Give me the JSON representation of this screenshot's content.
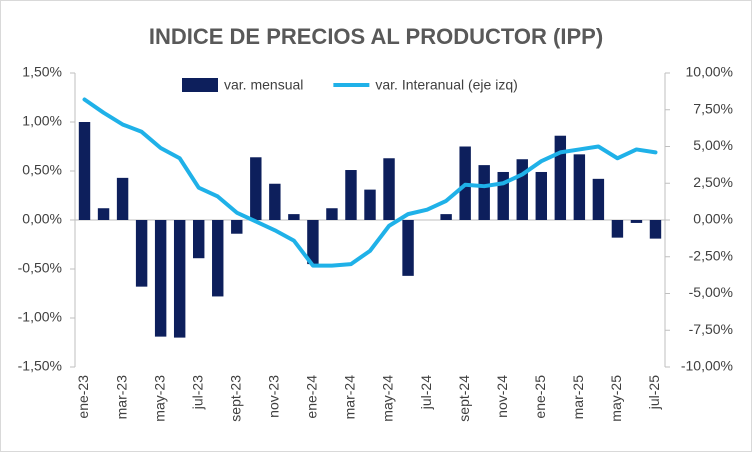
{
  "chart_data": {
    "type": "bar_line",
    "title": "INDICE DE PRECIOS AL PRODUCTOR (IPP)",
    "categories": [
      "ene-23",
      null,
      "mar-23",
      null,
      "may-23",
      null,
      "jul-23",
      null,
      "sept-23",
      null,
      "nov-23",
      null,
      "ene-24",
      null,
      "mar-24",
      null,
      "may-24",
      null,
      "jul-24",
      null,
      "sept-24",
      null,
      "nov-24",
      null,
      "ene-25",
      null,
      "mar-25",
      null,
      "may-25",
      null,
      "jul-25"
    ],
    "series": [
      {
        "name": "var. mensual",
        "type": "bar",
        "color": "#0d1f5c",
        "values": [
          1.0,
          0.12,
          0.43,
          -0.68,
          -1.19,
          -1.2,
          -0.39,
          -0.78,
          -0.14,
          0.64,
          0.37,
          0.06,
          -0.45,
          0.12,
          0.51,
          0.31,
          0.63,
          -0.57,
          0,
          0.06,
          0.75,
          0.56,
          0.49,
          0.62,
          0.49,
          0.86,
          0.67,
          0.42,
          -0.18,
          -0.03,
          -0.19
        ]
      },
      {
        "name": "var. Interanual (eje izq)",
        "type": "line",
        "axis": "y2",
        "color": "#1fb1e8",
        "values": [
          8.2,
          7.3,
          6.5,
          6.0,
          4.9,
          4.2,
          2.2,
          1.6,
          0.5,
          -0.1,
          -0.7,
          -1.4,
          -3.1,
          -3.1,
          -3.0,
          -2.1,
          -0.4,
          0.4,
          0.7,
          1.3,
          2.4,
          2.3,
          2.5,
          3.1,
          4.0,
          4.6,
          4.8,
          5.0,
          4.2,
          4.8,
          4.6
        ]
      }
    ],
    "ylim": [
      -1.5,
      1.5
    ],
    "yticks": [
      {
        "value": -1.5,
        "label": "-1,50%"
      },
      {
        "value": -1.0,
        "label": "-1,00%"
      },
      {
        "value": -0.5,
        "label": "-0,50%"
      },
      {
        "value": 0,
        "label": "0,00%"
      },
      {
        "value": 0.5,
        "label": "0,50%"
      },
      {
        "value": 1.0,
        "label": "1,00%"
      },
      {
        "value": 1.5,
        "label": "1,50%"
      }
    ],
    "y2lim": [
      -10,
      10
    ],
    "y2ticks": [
      {
        "value": -10,
        "label": "-10,00%"
      },
      {
        "value": -7.5,
        "label": "-7,50%"
      },
      {
        "value": -5,
        "label": "-5,00%"
      },
      {
        "value": -2.5,
        "label": "-2,50%"
      },
      {
        "value": 0,
        "label": "0,00%"
      },
      {
        "value": 2.5,
        "label": "2,50%"
      },
      {
        "value": 5,
        "label": "5,00%"
      },
      {
        "value": 7.5,
        "label": "7,50%"
      },
      {
        "value": 10,
        "label": "10,00%"
      }
    ],
    "legend": "top"
  }
}
